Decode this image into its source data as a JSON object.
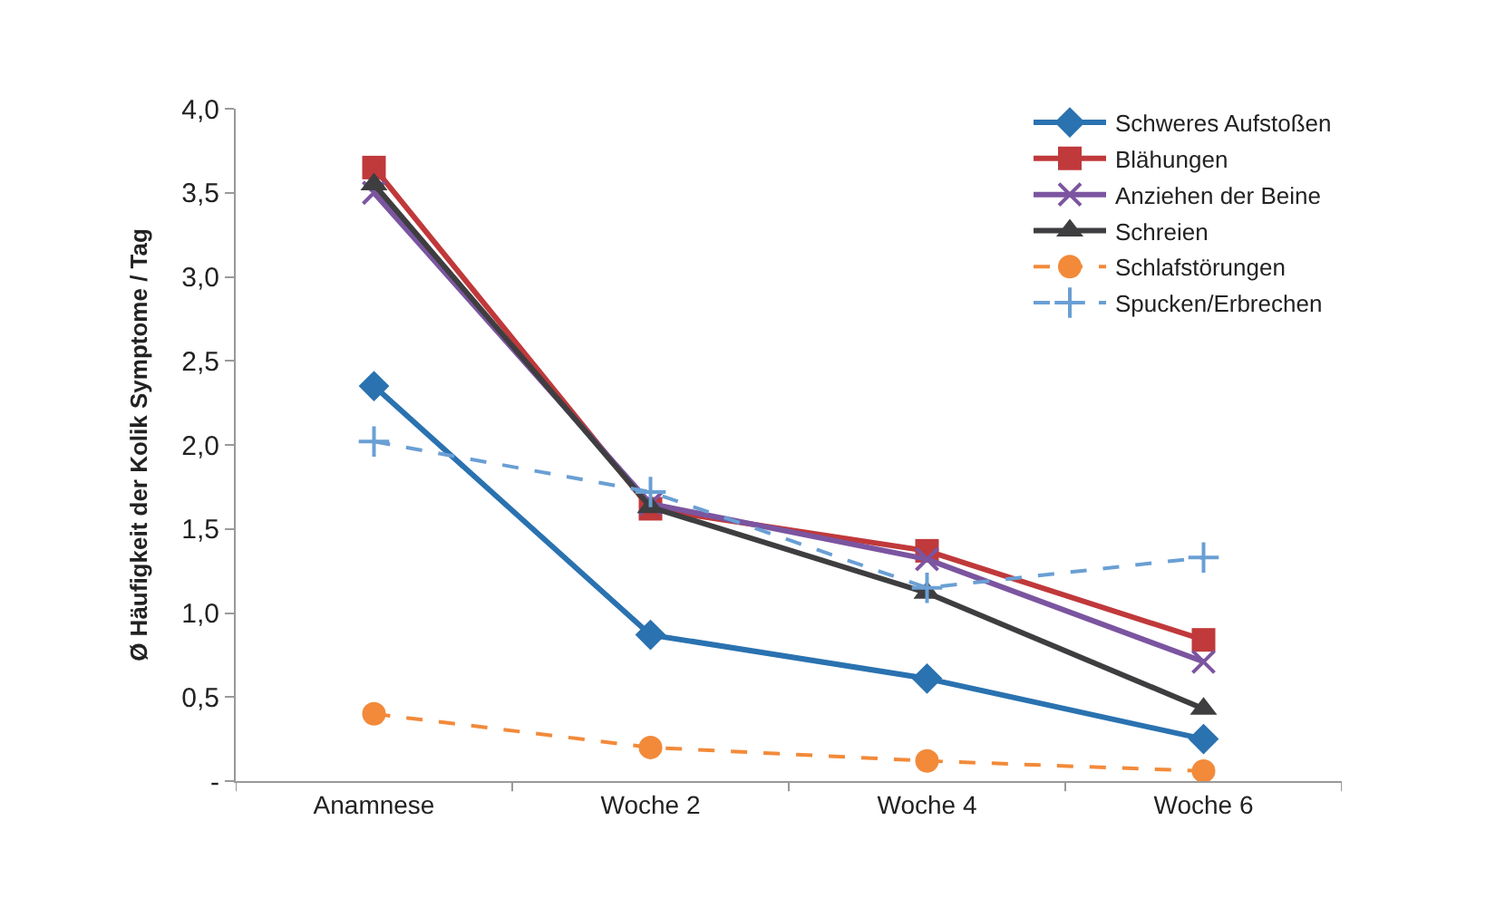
{
  "chart_data": {
    "type": "line",
    "ylabel": "Ø Häufigkeit der Kolik Symptome / Tag",
    "categories": [
      "Anamnese",
      "Woche 2",
      "Woche 4",
      "Woche 6"
    ],
    "ylim": [
      0,
      4
    ],
    "yticks": [
      {
        "value": 0,
        "label": "-"
      },
      {
        "value": 0.5,
        "label": "0,5"
      },
      {
        "value": 1,
        "label": "1,0"
      },
      {
        "value": 1.5,
        "label": "1,5"
      },
      {
        "value": 2,
        "label": "2,0"
      },
      {
        "value": 2.5,
        "label": "2,5"
      },
      {
        "value": 3,
        "label": "3,0"
      },
      {
        "value": 3.5,
        "label": "3,5"
      },
      {
        "value": 4,
        "label": "4,0"
      }
    ],
    "legend": "top right",
    "series": [
      {
        "name": "Schweres Aufstoßen",
        "color": "#2a72b0",
        "values": [
          2.35,
          0.87,
          0.61,
          0.25
        ],
        "marker": "diamond",
        "line_style": "solid"
      },
      {
        "name": "Blähungen",
        "color": "#c0393b",
        "values": [
          3.65,
          1.62,
          1.37,
          0.84
        ],
        "marker": "square",
        "line_style": "solid"
      },
      {
        "name": "Anziehen der Beine",
        "color": "#7b55a0",
        "values": [
          3.5,
          1.65,
          1.32,
          0.71
        ],
        "marker": "cross",
        "line_style": "solid"
      },
      {
        "name": "Schreien",
        "color": "#3e3e40",
        "values": [
          3.55,
          1.63,
          1.12,
          0.43
        ],
        "marker": "triangle",
        "line_style": "solid"
      },
      {
        "name": "Schlafstörungen",
        "color": "#f28a3a",
        "values": [
          0.4,
          0.2,
          0.12,
          0.06
        ],
        "marker": "circle",
        "line_style": "dashed"
      },
      {
        "name": "Spucken/Erbrechen",
        "color": "#6a9fd4",
        "values": [
          2.02,
          1.72,
          1.15,
          1.33
        ],
        "marker": "plus",
        "line_style": "dashed"
      }
    ]
  }
}
